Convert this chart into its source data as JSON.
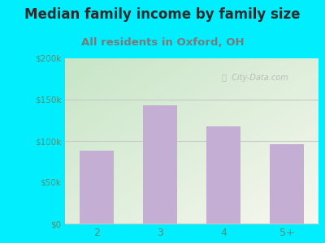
{
  "title": "Median family income by family size",
  "subtitle": "All residents in Oxford, OH",
  "categories": [
    "2",
    "3",
    "4",
    "5+"
  ],
  "values": [
    88000,
    143000,
    118000,
    96000
  ],
  "bar_color": "#c4aed4",
  "ylim": [
    0,
    200000
  ],
  "yticks": [
    0,
    50000,
    100000,
    150000,
    200000
  ],
  "ytick_labels": [
    "$0",
    "$50k",
    "$100k",
    "$150k",
    "$200k"
  ],
  "background_outer": "#00eeff",
  "title_color": "#2b2b2b",
  "subtitle_color": "#7a7a7a",
  "tick_color": "#5a8a6a",
  "grid_color": "#c8c8c8",
  "watermark": "City-Data.com",
  "title_fontsize": 12,
  "subtitle_fontsize": 9.5
}
